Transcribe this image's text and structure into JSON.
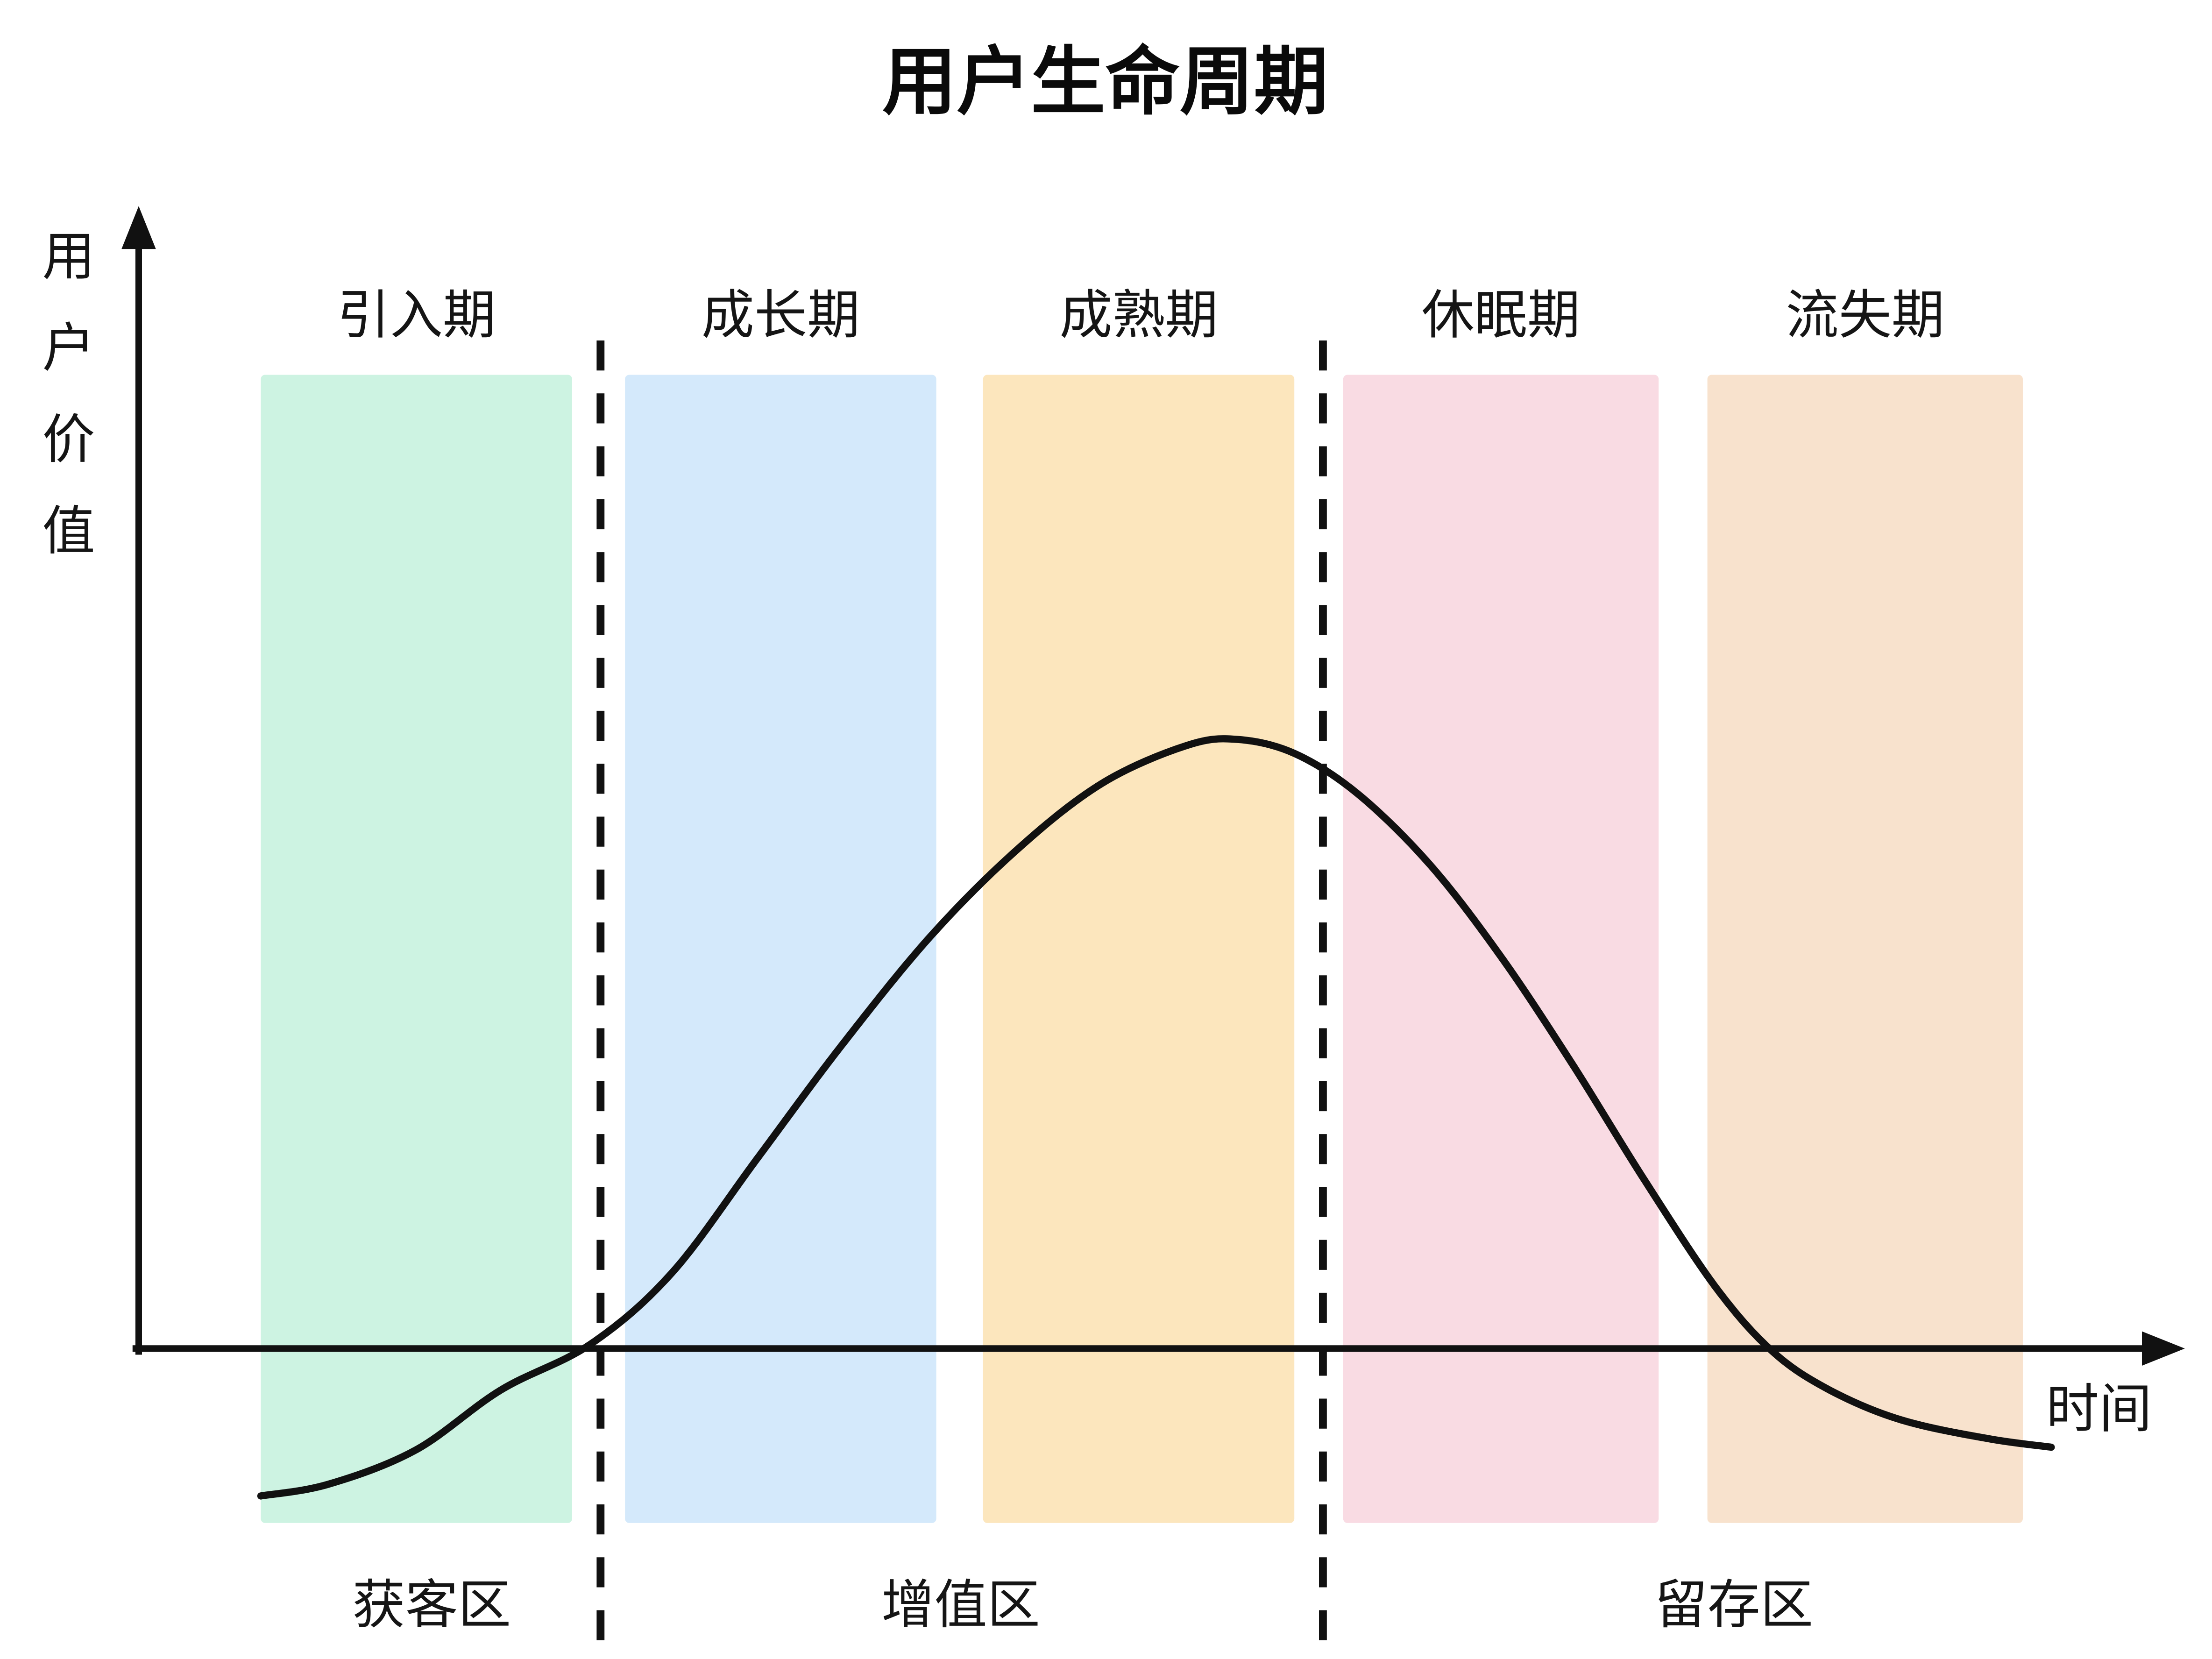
{
  "page": {
    "background": "#ffffff"
  },
  "chart_data": {
    "type": "area",
    "title": "用户生命周期",
    "xlabel": "时间",
    "ylabel": "用户价值",
    "grid": false,
    "axis_color": "#111111",
    "curve_color": "#111111",
    "stages": [
      {
        "label": "引入期",
        "color": "#cdf3e2",
        "x0": 0.06,
        "x1": 0.213
      },
      {
        "label": "成长期",
        "color": "#d4e9fb",
        "x0": 0.239,
        "x1": 0.392
      },
      {
        "label": "成熟期",
        "color": "#fce6bd",
        "x0": 0.415,
        "x1": 0.568
      },
      {
        "label": "休眠期",
        "color": "#f9dbe3",
        "x0": 0.592,
        "x1": 0.747
      },
      {
        "label": "流失期",
        "color": "#f8e2cd",
        "x0": 0.771,
        "x1": 0.926
      }
    ],
    "dividers": [
      0.227,
      0.582
    ],
    "zones": [
      {
        "label": "获客区",
        "x": 0.144
      },
      {
        "label": "增值区",
        "x": 0.404
      },
      {
        "label": "留存区",
        "x": 0.784
      }
    ],
    "curve_points": [
      [
        0.06,
        -0.242
      ],
      [
        0.093,
        -0.223
      ],
      [
        0.136,
        -0.167
      ],
      [
        0.178,
        -0.068
      ],
      [
        0.222,
        0.007
      ],
      [
        0.262,
        0.124
      ],
      [
        0.304,
        0.312
      ],
      [
        0.346,
        0.5
      ],
      [
        0.389,
        0.676
      ],
      [
        0.431,
        0.817
      ],
      [
        0.473,
        0.927
      ],
      [
        0.515,
        0.99
      ],
      [
        0.54,
        1.0
      ],
      [
        0.568,
        0.977
      ],
      [
        0.599,
        0.911
      ],
      [
        0.635,
        0.793
      ],
      [
        0.67,
        0.641
      ],
      [
        0.705,
        0.465
      ],
      [
        0.74,
        0.277
      ],
      [
        0.775,
        0.101
      ],
      [
        0.803,
        -0.005
      ],
      [
        0.831,
        -0.068
      ],
      [
        0.866,
        -0.117
      ],
      [
        0.909,
        -0.148
      ],
      [
        0.94,
        -0.162
      ]
    ]
  }
}
